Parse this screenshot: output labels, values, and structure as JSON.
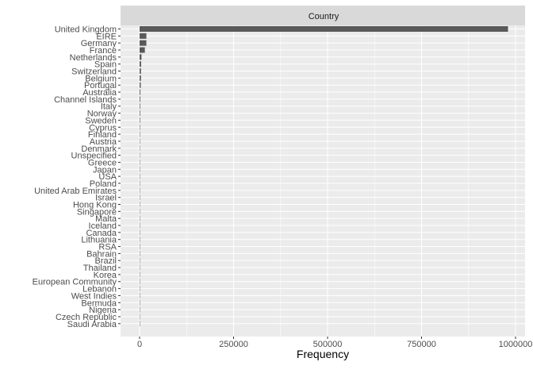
{
  "chart_data": {
    "type": "bar",
    "orientation": "horizontal",
    "facet_label": "Country",
    "xlabel": "Frequency",
    "ylabel": "",
    "xlim": [
      -40000,
      1000000
    ],
    "x_ticks": [
      0,
      250000,
      500000,
      750000,
      1000000
    ],
    "x_tick_labels": [
      "0",
      "250000",
      "500000",
      "750000",
      "1000000"
    ],
    "grid": true,
    "colors": {
      "bar": "#595959",
      "panel": "#ebebeb",
      "strip": "#d9d9d9",
      "grid": "#ffffff"
    },
    "categories": [
      "United Kingdom",
      "EIRE",
      "Germany",
      "France",
      "Netherlands",
      "Spain",
      "Switzerland",
      "Belgium",
      "Portugal",
      "Australia",
      "Channel Islands",
      "Italy",
      "Norway",
      "Sweden",
      "Cyprus",
      "Finland",
      "Austria",
      "Denmark",
      "Unspecified",
      "Greece",
      "Japan",
      "USA",
      "Poland",
      "United Arab Emirates",
      "Israel",
      "Hong Kong",
      "Singapore",
      "Malta",
      "Iceland",
      "Canada",
      "Lithuania",
      "RSA",
      "Bahrain",
      "Brazil",
      "Thailand",
      "Korea",
      "European Community",
      "Lebanon",
      "West Indies",
      "Bermuda",
      "Nigeria",
      "Czech Republic",
      "Saudi Arabia"
    ],
    "values": [
      980000,
      18000,
      18000,
      14000,
      5000,
      4000,
      3500,
      3500,
      3000,
      2000,
      1800,
      1500,
      1500,
      1300,
      1100,
      1000,
      900,
      800,
      800,
      700,
      600,
      600,
      600,
      500,
      300,
      300,
      250,
      250,
      200,
      200,
      150,
      120,
      110,
      90,
      80,
      70,
      60,
      50,
      50,
      30,
      30,
      25,
      10
    ]
  }
}
